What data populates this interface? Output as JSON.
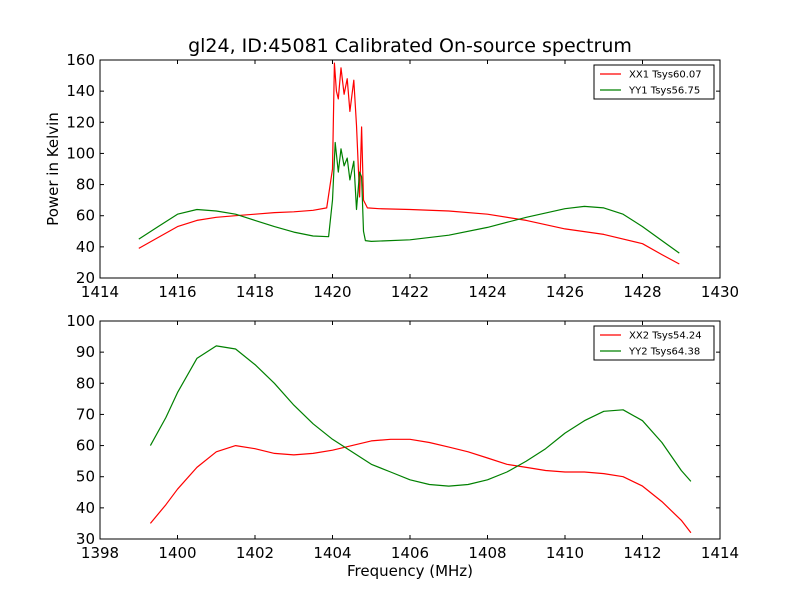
{
  "chart_data": [
    {
      "type": "line",
      "title": "gl24, ID:45081 Calibrated On-source spectrum",
      "xlabel": "",
      "ylabel": "Power in Kelvin",
      "xlim": [
        1414,
        1430
      ],
      "ylim": [
        20,
        160
      ],
      "xticks": [
        "1414",
        "1416",
        "1418",
        "1420",
        "1422",
        "1424",
        "1426",
        "1428",
        "1430"
      ],
      "yticks": [
        "20",
        "40",
        "60",
        "80",
        "100",
        "120",
        "140",
        "160"
      ],
      "legend_position": "top-right",
      "series": [
        {
          "name": "XX1 Tsys60.07",
          "color": "#ff0000",
          "points": [
            [
              1415.0,
              39
            ],
            [
              1415.5,
              46
            ],
            [
              1416.0,
              53
            ],
            [
              1416.5,
              57
            ],
            [
              1417.0,
              59
            ],
            [
              1417.5,
              60
            ],
            [
              1418.0,
              61
            ],
            [
              1418.5,
              62
            ],
            [
              1419.0,
              62.5
            ],
            [
              1419.5,
              63.5
            ],
            [
              1419.85,
              65
            ],
            [
              1420.0,
              90
            ],
            [
              1420.05,
              158
            ],
            [
              1420.1,
              140
            ],
            [
              1420.15,
              135
            ],
            [
              1420.22,
              155
            ],
            [
              1420.3,
              138
            ],
            [
              1420.38,
              148
            ],
            [
              1420.45,
              127
            ],
            [
              1420.55,
              147
            ],
            [
              1420.62,
              118
            ],
            [
              1420.7,
              72
            ],
            [
              1420.75,
              117
            ],
            [
              1420.8,
              70
            ],
            [
              1420.9,
              65
            ],
            [
              1421.2,
              64.5
            ],
            [
              1422.0,
              64
            ],
            [
              1423.0,
              63
            ],
            [
              1424.0,
              61
            ],
            [
              1425.0,
              57
            ],
            [
              1426.0,
              51.5
            ],
            [
              1427.0,
              48
            ],
            [
              1428.0,
              42
            ],
            [
              1428.5,
              35
            ],
            [
              1428.95,
              29
            ]
          ]
        },
        {
          "name": "YY1 Tsys56.75",
          "color": "#008000",
          "points": [
            [
              1415.0,
              45
            ],
            [
              1415.5,
              53
            ],
            [
              1416.0,
              61
            ],
            [
              1416.5,
              64
            ],
            [
              1417.0,
              63
            ],
            [
              1417.5,
              61
            ],
            [
              1418.0,
              57
            ],
            [
              1418.5,
              53
            ],
            [
              1419.0,
              49.5
            ],
            [
              1419.5,
              47
            ],
            [
              1419.9,
              46.5
            ],
            [
              1420.0,
              70
            ],
            [
              1420.07,
              107
            ],
            [
              1420.15,
              88
            ],
            [
              1420.22,
              103
            ],
            [
              1420.3,
              92
            ],
            [
              1420.38,
              97
            ],
            [
              1420.45,
              83
            ],
            [
              1420.55,
              95
            ],
            [
              1420.62,
              64
            ],
            [
              1420.7,
              88
            ],
            [
              1420.75,
              85
            ],
            [
              1420.8,
              50
            ],
            [
              1420.85,
              44
            ],
            [
              1421.0,
              43.5
            ],
            [
              1422.0,
              44.5
            ],
            [
              1423.0,
              47.5
            ],
            [
              1424.0,
              52.5
            ],
            [
              1425.0,
              59
            ],
            [
              1426.0,
              64.5
            ],
            [
              1426.5,
              66
            ],
            [
              1427.0,
              65
            ],
            [
              1427.5,
              61
            ],
            [
              1428.0,
              53
            ],
            [
              1428.5,
              44
            ],
            [
              1428.95,
              36
            ]
          ]
        }
      ]
    },
    {
      "type": "line",
      "title": "",
      "xlabel": "Frequency (MHz)",
      "ylabel": "",
      "xlim": [
        1398,
        1414
      ],
      "ylim": [
        30,
        100
      ],
      "xticks": [
        "1398",
        "1400",
        "1402",
        "1404",
        "1406",
        "1408",
        "1410",
        "1412",
        "1414"
      ],
      "yticks": [
        "30",
        "40",
        "50",
        "60",
        "70",
        "80",
        "90",
        "100"
      ],
      "legend_position": "top-right",
      "series": [
        {
          "name": "XX2 Tsys54.24",
          "color": "#ff0000",
          "points": [
            [
              1399.3,
              35
            ],
            [
              1399.7,
              41
            ],
            [
              1400.0,
              46
            ],
            [
              1400.5,
              53
            ],
            [
              1401.0,
              58
            ],
            [
              1401.5,
              60
            ],
            [
              1402.0,
              59
            ],
            [
              1402.5,
              57.5
            ],
            [
              1403.0,
              57
            ],
            [
              1403.5,
              57.5
            ],
            [
              1404.0,
              58.5
            ],
            [
              1404.5,
              60
            ],
            [
              1405.0,
              61.5
            ],
            [
              1405.5,
              62
            ],
            [
              1406.0,
              62
            ],
            [
              1406.5,
              61
            ],
            [
              1407.0,
              59.5
            ],
            [
              1407.5,
              58
            ],
            [
              1408.0,
              56
            ],
            [
              1408.5,
              54
            ],
            [
              1409.0,
              53
            ],
            [
              1409.5,
              52
            ],
            [
              1410.0,
              51.5
            ],
            [
              1410.5,
              51.5
            ],
            [
              1411.0,
              51
            ],
            [
              1411.5,
              50
            ],
            [
              1412.0,
              47
            ],
            [
              1412.5,
              42
            ],
            [
              1413.0,
              36
            ],
            [
              1413.25,
              32
            ]
          ]
        },
        {
          "name": "YY2 Tsys64.38",
          "color": "#008000",
          "points": [
            [
              1399.3,
              60
            ],
            [
              1399.7,
              69
            ],
            [
              1400.0,
              77
            ],
            [
              1400.5,
              88
            ],
            [
              1401.0,
              92
            ],
            [
              1401.5,
              91
            ],
            [
              1402.0,
              86
            ],
            [
              1402.5,
              80
            ],
            [
              1403.0,
              73
            ],
            [
              1403.5,
              67
            ],
            [
              1404.0,
              62
            ],
            [
              1404.5,
              58
            ],
            [
              1405.0,
              54
            ],
            [
              1405.5,
              51.5
            ],
            [
              1406.0,
              49
            ],
            [
              1406.5,
              47.5
            ],
            [
              1407.0,
              47
            ],
            [
              1407.5,
              47.5
            ],
            [
              1408.0,
              49
            ],
            [
              1408.5,
              51.5
            ],
            [
              1409.0,
              55
            ],
            [
              1409.5,
              59
            ],
            [
              1410.0,
              64
            ],
            [
              1410.5,
              68
            ],
            [
              1411.0,
              71
            ],
            [
              1411.5,
              71.5
            ],
            [
              1412.0,
              68
            ],
            [
              1412.5,
              61
            ],
            [
              1413.0,
              52
            ],
            [
              1413.25,
              48.5
            ]
          ]
        }
      ]
    }
  ]
}
